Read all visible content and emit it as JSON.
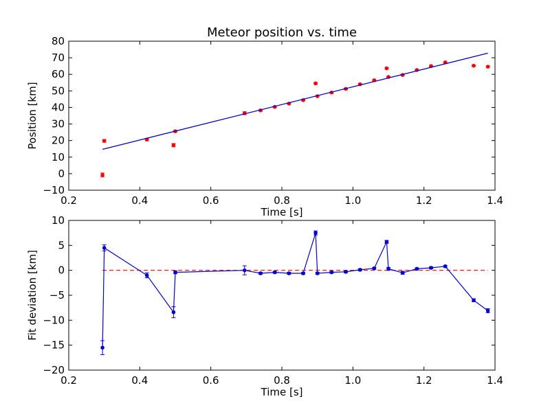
{
  "chart_data": [
    {
      "type": "scatter",
      "title": "Meteor position vs. time",
      "xlabel": "Time [s]",
      "ylabel": "Position [km]",
      "xlim": [
        0.2,
        1.4
      ],
      "ylim": [
        -10,
        80
      ],
      "xticks": [
        "0.2",
        "0.4",
        "0.6",
        "0.8",
        "1.0",
        "1.2",
        "1.4"
      ],
      "yticks": [
        "−10",
        "0",
        "10",
        "20",
        "30",
        "40",
        "50",
        "60",
        "70",
        "80"
      ],
      "grid": false,
      "series": [
        {
          "kind": "errorbar-points",
          "color": "#ff0000",
          "points": [
            {
              "x": 0.295,
              "y": -0.8,
              "err": 1.2
            },
            {
              "x": 0.3,
              "y": 19.8,
              "err": 0.8
            },
            {
              "x": 0.42,
              "y": 20.6,
              "err": 0.6
            },
            {
              "x": 0.495,
              "y": 17.2,
              "err": 1.0
            },
            {
              "x": 0.5,
              "y": 25.6,
              "err": 0.5
            },
            {
              "x": 0.695,
              "y": 36.5,
              "err": 0.9
            },
            {
              "x": 0.74,
              "y": 38.2,
              "err": 0.4
            },
            {
              "x": 0.78,
              "y": 40.3,
              "err": 0.4
            },
            {
              "x": 0.82,
              "y": 42.3,
              "err": 0.4
            },
            {
              "x": 0.86,
              "y": 44.4,
              "err": 0.4
            },
            {
              "x": 0.895,
              "y": 54.5,
              "err": 0.5
            },
            {
              "x": 0.9,
              "y": 46.8,
              "err": 0.4
            },
            {
              "x": 0.94,
              "y": 49.0,
              "err": 0.4
            },
            {
              "x": 0.98,
              "y": 51.2,
              "err": 0.4
            },
            {
              "x": 1.02,
              "y": 54.0,
              "err": 0.4
            },
            {
              "x": 1.06,
              "y": 56.4,
              "err": 0.4
            },
            {
              "x": 1.095,
              "y": 63.6,
              "err": 0.5
            },
            {
              "x": 1.1,
              "y": 58.4,
              "err": 0.4
            },
            {
              "x": 1.14,
              "y": 59.6,
              "err": 0.4
            },
            {
              "x": 1.18,
              "y": 62.6,
              "err": 0.4
            },
            {
              "x": 1.22,
              "y": 65.0,
              "err": 0.4
            },
            {
              "x": 1.26,
              "y": 67.2,
              "err": 0.4
            },
            {
              "x": 1.34,
              "y": 65.2,
              "err": 0.4
            },
            {
              "x": 1.38,
              "y": 64.6,
              "err": 0.4
            }
          ]
        },
        {
          "kind": "fit-line",
          "color": "#0000cc",
          "x": [
            0.295,
            1.38
          ],
          "y": [
            14.7,
            72.8
          ]
        }
      ]
    },
    {
      "type": "line",
      "title": "",
      "xlabel": "Time [s]",
      "ylabel": "Fit deviation [km]",
      "xlim": [
        0.2,
        1.4
      ],
      "ylim": [
        -20,
        10
      ],
      "xticks": [
        "0.2",
        "0.4",
        "0.6",
        "0.8",
        "1.0",
        "1.2",
        "1.4"
      ],
      "yticks": [
        "−20",
        "−15",
        "−10",
        "−5",
        "0",
        "5",
        "10"
      ],
      "grid": false,
      "reference_line": {
        "y": 0,
        "color": "#ff0000",
        "style": "dashed"
      },
      "series": [
        {
          "kind": "errorbar-line",
          "color": "#0000cc",
          "points": [
            {
              "x": 0.295,
              "y": -15.5,
              "err": 1.4
            },
            {
              "x": 0.3,
              "y": 4.5,
              "err": 0.6
            },
            {
              "x": 0.42,
              "y": -1.0,
              "err": 0.5
            },
            {
              "x": 0.495,
              "y": -8.4,
              "err": 1.1
            },
            {
              "x": 0.5,
              "y": -0.4,
              "err": 0.3
            },
            {
              "x": 0.695,
              "y": 0.0,
              "err": 0.9
            },
            {
              "x": 0.74,
              "y": -0.6,
              "err": 0.2
            },
            {
              "x": 0.78,
              "y": -0.4,
              "err": 0.2
            },
            {
              "x": 0.82,
              "y": -0.6,
              "err": 0.2
            },
            {
              "x": 0.86,
              "y": -0.6,
              "err": 0.2
            },
            {
              "x": 0.895,
              "y": 7.5,
              "err": 0.4
            },
            {
              "x": 0.9,
              "y": -0.6,
              "err": 0.2
            },
            {
              "x": 0.94,
              "y": -0.4,
              "err": 0.2
            },
            {
              "x": 0.98,
              "y": -0.3,
              "err": 0.2
            },
            {
              "x": 1.02,
              "y": 0.1,
              "err": 0.2
            },
            {
              "x": 1.06,
              "y": 0.4,
              "err": 0.2
            },
            {
              "x": 1.095,
              "y": 5.7,
              "err": 0.3
            },
            {
              "x": 1.1,
              "y": 0.3,
              "err": 0.3
            },
            {
              "x": 1.14,
              "y": -0.5,
              "err": 0.3
            },
            {
              "x": 1.18,
              "y": 0.3,
              "err": 0.2
            },
            {
              "x": 1.22,
              "y": 0.5,
              "err": 0.2
            },
            {
              "x": 1.26,
              "y": 0.8,
              "err": 0.2
            },
            {
              "x": 1.34,
              "y": -6.0,
              "err": 0.3
            },
            {
              "x": 1.38,
              "y": -8.1,
              "err": 0.4
            }
          ]
        }
      ]
    }
  ]
}
